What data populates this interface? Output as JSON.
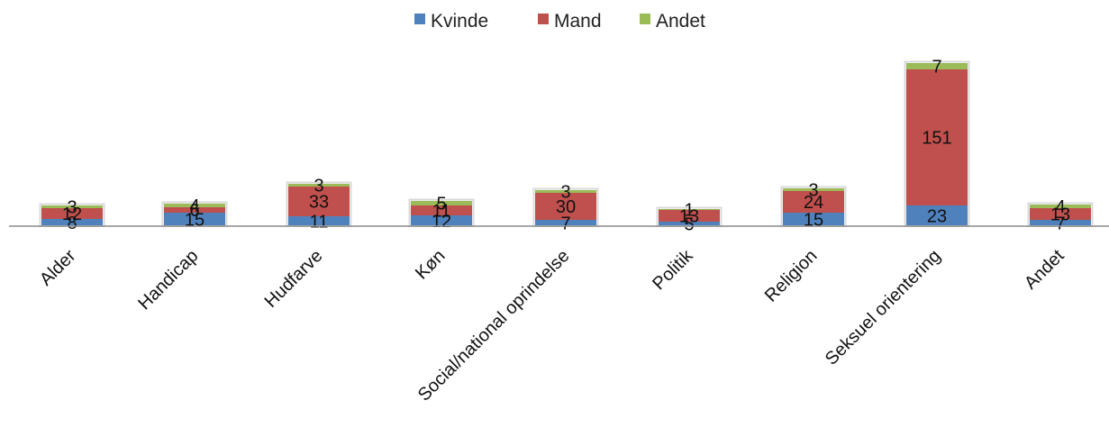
{
  "chart_data": {
    "type": "bar",
    "stacked": true,
    "title": "",
    "xlabel": "",
    "ylabel": "",
    "categories": [
      "Alder",
      "Handicap",
      "Hudfarve",
      "Køn",
      "Social/national oprindelse",
      "Politik",
      "Religion",
      "Seksuel orientering",
      "Andet"
    ],
    "series": [
      {
        "name": "Kvinde",
        "color": "#4f81bd",
        "values": [
          8,
          15,
          11,
          12,
          7,
          5,
          15,
          23,
          7
        ]
      },
      {
        "name": "Mand",
        "color": "#c0504d",
        "values": [
          12,
          6,
          33,
          11,
          30,
          13,
          24,
          151,
          13
        ]
      },
      {
        "name": "Andet",
        "color": "#9bbb59",
        "values": [
          3,
          4,
          3,
          5,
          3,
          1,
          3,
          7,
          4
        ]
      }
    ],
    "ylim": [
      0,
      190
    ],
    "grid": false,
    "legend": "top-center",
    "data_labels": true
  }
}
